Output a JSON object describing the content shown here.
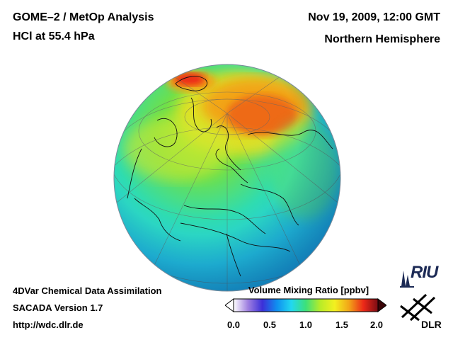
{
  "header": {
    "title_line1": "GOME–2 / MetOp Analysis",
    "title_line2": "HCl at 55.4 hPa",
    "date": "Nov 19, 2009, 12:00 GMT",
    "region": "Northern Hemisphere"
  },
  "footer": {
    "line1": "4DVar Chemical Data Assimilation",
    "line2": "SACADA Version 1.7",
    "line3": "http://wdc.dlr.de"
  },
  "colorbar": {
    "title": "Volume Mixing Ratio [ppbv]",
    "ticks": [
      "0.0",
      "0.5",
      "1.0",
      "1.5",
      "2.0"
    ],
    "colors": [
      "#ffffff",
      "#9f7fe0",
      "#3b2fd8",
      "#0f8ff0",
      "#22d8f0",
      "#3ce07a",
      "#b8ec28",
      "#f3f020",
      "#f2a418",
      "#ec2818",
      "#7a0c14"
    ]
  },
  "logos": {
    "riu": "RIU",
    "dlr": "DLR"
  }
}
